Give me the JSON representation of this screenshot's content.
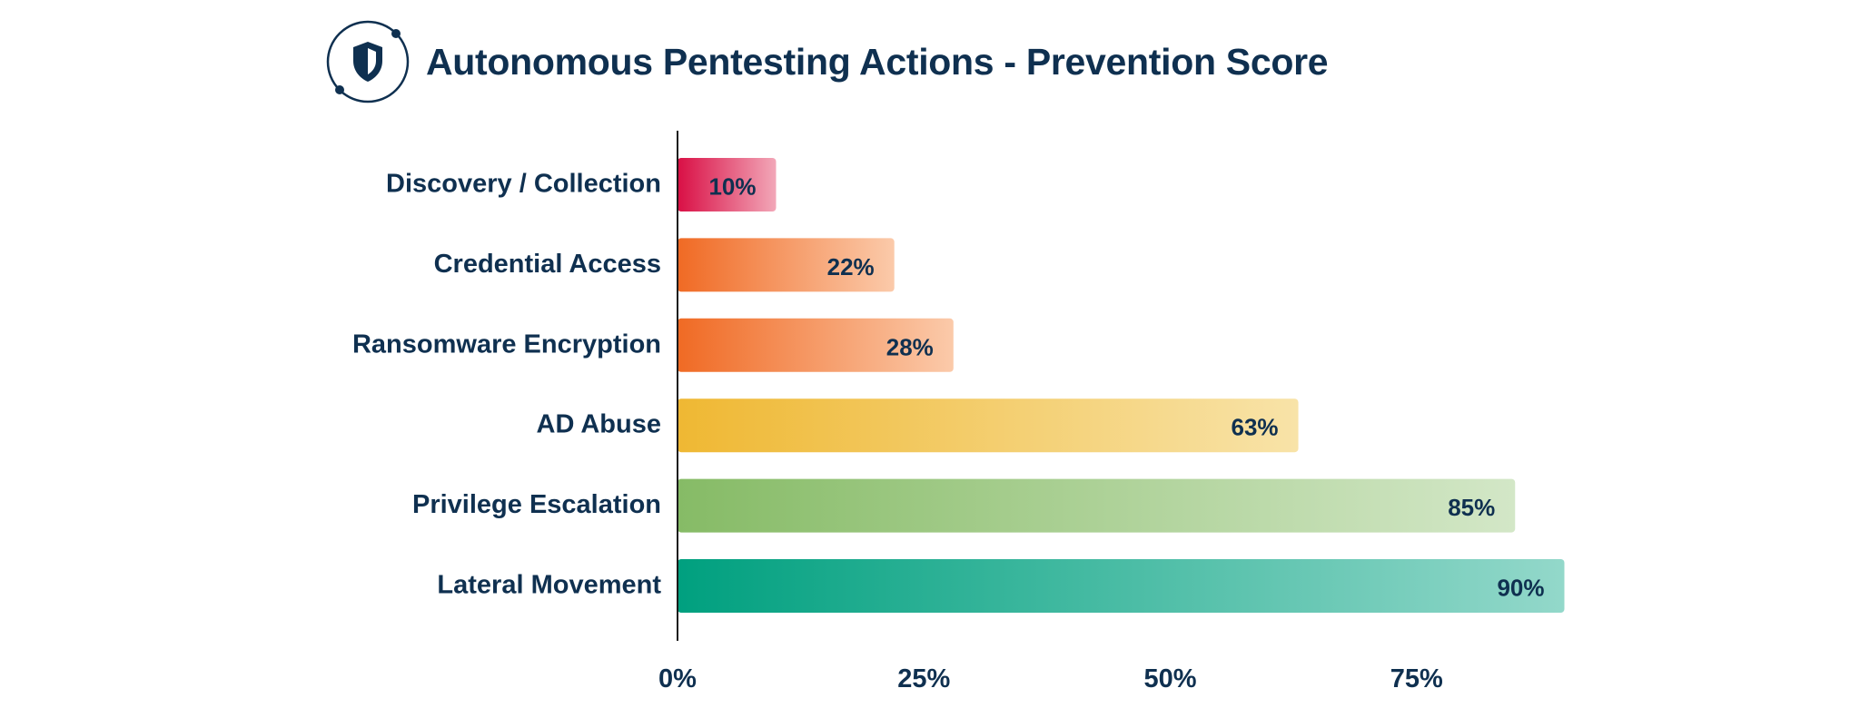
{
  "header": {
    "title": "Autonomous Pentesting Actions - Prevention Score",
    "logo_icon": "shield-orbit-icon"
  },
  "colors": {
    "text": "#0f3050",
    "axis": "#1a1a1a",
    "bars": [
      [
        "#d90f45",
        "#f2a7b8"
      ],
      [
        "#f06a24",
        "#fbcaaa"
      ],
      [
        "#f06a24",
        "#fbcaaa"
      ],
      [
        "#efb833",
        "#f8e3a8"
      ],
      [
        "#86bb66",
        "#d3e7c7"
      ],
      [
        "#00a07f",
        "#93d8ca"
      ]
    ]
  },
  "chart_data": {
    "type": "bar",
    "orientation": "horizontal",
    "title": "Autonomous Pentesting Actions - Prevention Score",
    "xlabel": "",
    "ylabel": "",
    "categories": [
      "Discovery / Collection",
      "Credential Access",
      "Ransomware Encryption",
      "AD Abuse",
      "Privilege Escalation",
      "Lateral Movement"
    ],
    "values": [
      10,
      22,
      28,
      63,
      85,
      90
    ],
    "data_labels": [
      "10%",
      "22%",
      "28%",
      "63%",
      "85%",
      "90%"
    ],
    "xlim": [
      0,
      100
    ],
    "xticks": [
      0,
      25,
      50,
      75
    ],
    "xtick_labels": [
      "0%",
      "25%",
      "50%",
      "75%"
    ],
    "grid": false,
    "legend": "none"
  }
}
